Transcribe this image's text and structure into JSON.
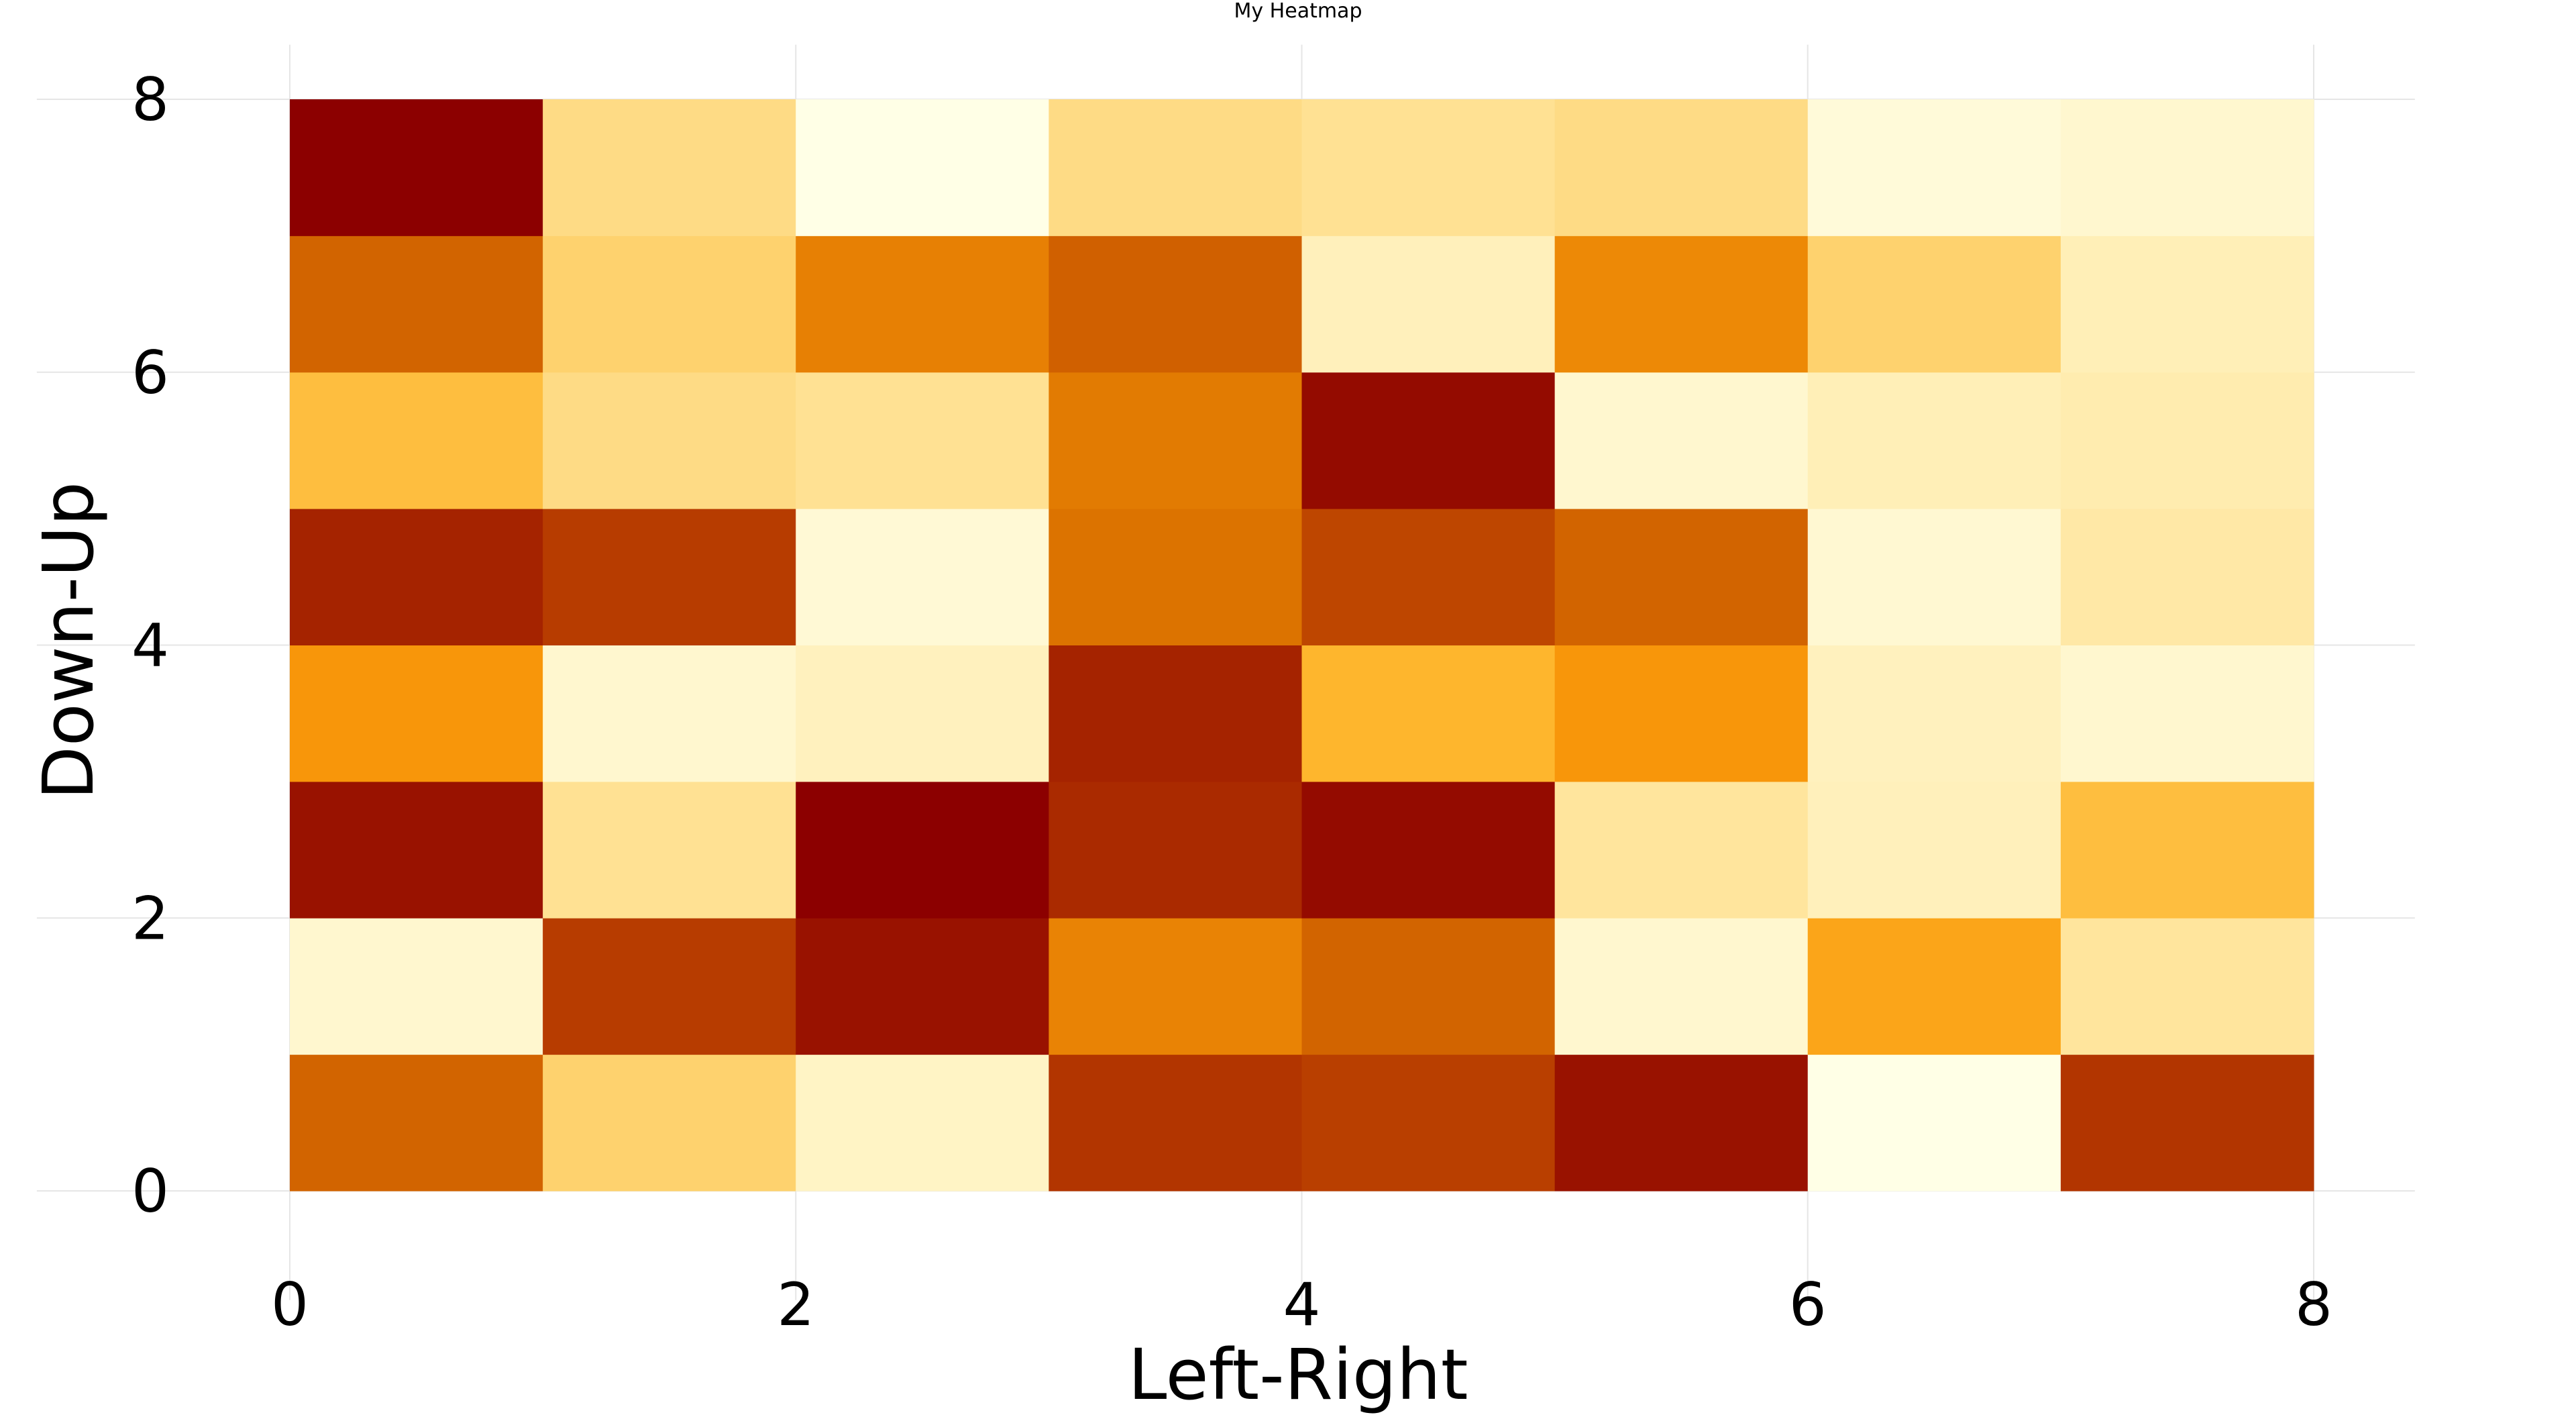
{
  "chart_data": {
    "type": "heatmap",
    "title": "My Heatmap",
    "xlabel": "Left-Right",
    "ylabel": "Down-Up",
    "xlim": [
      -1,
      8.4
    ],
    "ylim": [
      -0.8,
      8.4
    ],
    "x_ticks": [
      0,
      2,
      4,
      6,
      8
    ],
    "y_ticks": [
      0,
      2,
      4,
      6,
      8
    ],
    "x_tick_labels": [
      "0",
      "2",
      "4",
      "6",
      "8"
    ],
    "y_tick_labels": [
      "0",
      "2",
      "4",
      "6",
      "8"
    ],
    "grid": true,
    "colormap": "YlOrRd-like (light yellow → dark red)",
    "colorbar": false,
    "value_range": [
      0,
      1
    ],
    "x_edges": [
      0,
      1,
      2,
      3,
      4,
      5,
      6,
      7,
      8
    ],
    "y_edges": [
      0,
      1,
      2,
      3,
      4,
      5,
      6,
      7,
      8
    ],
    "z_rows_bottom_to_top": [
      [
        0.72,
        0.3,
        0.1,
        0.85,
        0.82,
        0.95,
        0.0,
        0.85
      ],
      [
        0.07,
        0.83,
        0.95,
        0.62,
        0.72,
        0.07,
        0.5,
        0.2
      ],
      [
        0.95,
        0.22,
        1.0,
        0.88,
        0.97,
        0.2,
        0.13,
        0.4
      ],
      [
        0.55,
        0.07,
        0.12,
        0.9,
        0.44,
        0.55,
        0.12,
        0.07
      ],
      [
        0.9,
        0.83,
        0.05,
        0.68,
        0.8,
        0.72,
        0.06,
        0.18
      ],
      [
        0.4,
        0.25,
        0.22,
        0.65,
        0.97,
        0.07,
        0.14,
        0.16
      ],
      [
        0.72,
        0.3,
        0.63,
        0.73,
        0.13,
        0.6,
        0.3,
        0.14
      ],
      [
        1.0,
        0.25,
        0.0,
        0.25,
        0.22,
        0.25,
        0.04,
        0.07
      ]
    ]
  }
}
